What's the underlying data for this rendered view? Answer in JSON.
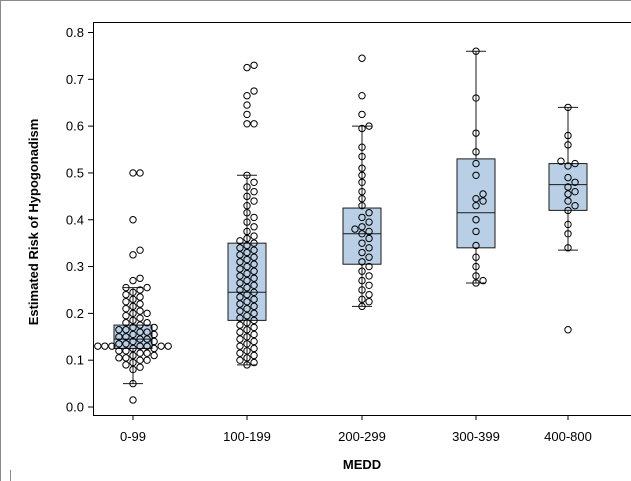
{
  "chart_data": {
    "type": "box",
    "title": "",
    "xlabel": "MEDD",
    "ylabel": "Estimated Risk of Hypogonadism",
    "ylim": [
      0,
      0.8
    ],
    "yticks": [
      "0.0",
      "0.1",
      "0.2",
      "0.3",
      "0.4",
      "0.5",
      "0.6",
      "0.7",
      "0.8"
    ],
    "grid": false,
    "legend": "none",
    "colors": {
      "box_fill": "#b8cfe6",
      "box_stroke": "#1a1a1a",
      "point_stroke": "#000000"
    },
    "categories": [
      "0-99",
      "100-199",
      "200-299",
      "300-399",
      "400-800"
    ],
    "boxes": [
      {
        "category": "0-99",
        "whisker_low": 0.05,
        "q1": 0.125,
        "median": 0.145,
        "q3": 0.175,
        "whisker_high": 0.255
      },
      {
        "category": "100-199",
        "whisker_low": 0.09,
        "q1": 0.185,
        "median": 0.245,
        "q3": 0.35,
        "whisker_high": 0.495
      },
      {
        "category": "200-299",
        "whisker_low": 0.215,
        "q1": 0.305,
        "median": 0.37,
        "q3": 0.425,
        "whisker_high": 0.6
      },
      {
        "category": "300-399",
        "whisker_low": 0.265,
        "q1": 0.34,
        "median": 0.415,
        "q3": 0.53,
        "whisker_high": 0.76
      },
      {
        "category": "400-800",
        "whisker_low": 0.335,
        "q1": 0.42,
        "median": 0.475,
        "q3": 0.52,
        "whisker_high": 0.64
      }
    ],
    "points": [
      [
        0.5,
        0.5,
        0.4,
        0.335,
        0.325,
        0.275,
        0.27,
        0.255,
        0.255,
        0.25,
        0.245,
        0.24,
        0.235,
        0.23,
        0.225,
        0.22,
        0.215,
        0.21,
        0.205,
        0.2,
        0.2,
        0.195,
        0.19,
        0.185,
        0.18,
        0.18,
        0.175,
        0.17,
        0.17,
        0.165,
        0.165,
        0.16,
        0.16,
        0.155,
        0.155,
        0.15,
        0.15,
        0.145,
        0.145,
        0.14,
        0.14,
        0.135,
        0.135,
        0.13,
        0.13,
        0.13,
        0.13,
        0.13,
        0.13,
        0.13,
        0.125,
        0.125,
        0.12,
        0.12,
        0.115,
        0.115,
        0.11,
        0.11,
        0.105,
        0.105,
        0.1,
        0.1,
        0.095,
        0.09,
        0.085,
        0.08,
        0.05,
        0.015
      ],
      [
        0.73,
        0.725,
        0.675,
        0.665,
        0.645,
        0.625,
        0.605,
        0.605,
        0.495,
        0.48,
        0.47,
        0.46,
        0.45,
        0.44,
        0.43,
        0.415,
        0.405,
        0.395,
        0.385,
        0.375,
        0.365,
        0.36,
        0.355,
        0.35,
        0.345,
        0.34,
        0.335,
        0.33,
        0.325,
        0.32,
        0.315,
        0.31,
        0.305,
        0.3,
        0.295,
        0.29,
        0.285,
        0.28,
        0.275,
        0.27,
        0.265,
        0.26,
        0.255,
        0.25,
        0.245,
        0.24,
        0.235,
        0.23,
        0.225,
        0.22,
        0.215,
        0.21,
        0.205,
        0.2,
        0.195,
        0.19,
        0.185,
        0.18,
        0.175,
        0.17,
        0.165,
        0.16,
        0.155,
        0.15,
        0.145,
        0.14,
        0.135,
        0.13,
        0.125,
        0.12,
        0.115,
        0.11,
        0.105,
        0.1,
        0.095,
        0.09
      ],
      [
        0.745,
        0.665,
        0.625,
        0.6,
        0.595,
        0.555,
        0.535,
        0.51,
        0.495,
        0.48,
        0.46,
        0.445,
        0.43,
        0.415,
        0.405,
        0.395,
        0.385,
        0.38,
        0.375,
        0.37,
        0.36,
        0.35,
        0.34,
        0.33,
        0.32,
        0.31,
        0.3,
        0.29,
        0.28,
        0.27,
        0.26,
        0.25,
        0.24,
        0.23,
        0.225,
        0.215
      ],
      [
        0.76,
        0.66,
        0.585,
        0.545,
        0.52,
        0.495,
        0.455,
        0.445,
        0.44,
        0.43,
        0.4,
        0.375,
        0.345,
        0.32,
        0.3,
        0.28,
        0.27,
        0.265
      ],
      [
        0.64,
        0.58,
        0.56,
        0.525,
        0.52,
        0.515,
        0.49,
        0.48,
        0.47,
        0.46,
        0.455,
        0.44,
        0.43,
        0.42,
        0.39,
        0.37,
        0.34,
        0.165
      ]
    ]
  }
}
